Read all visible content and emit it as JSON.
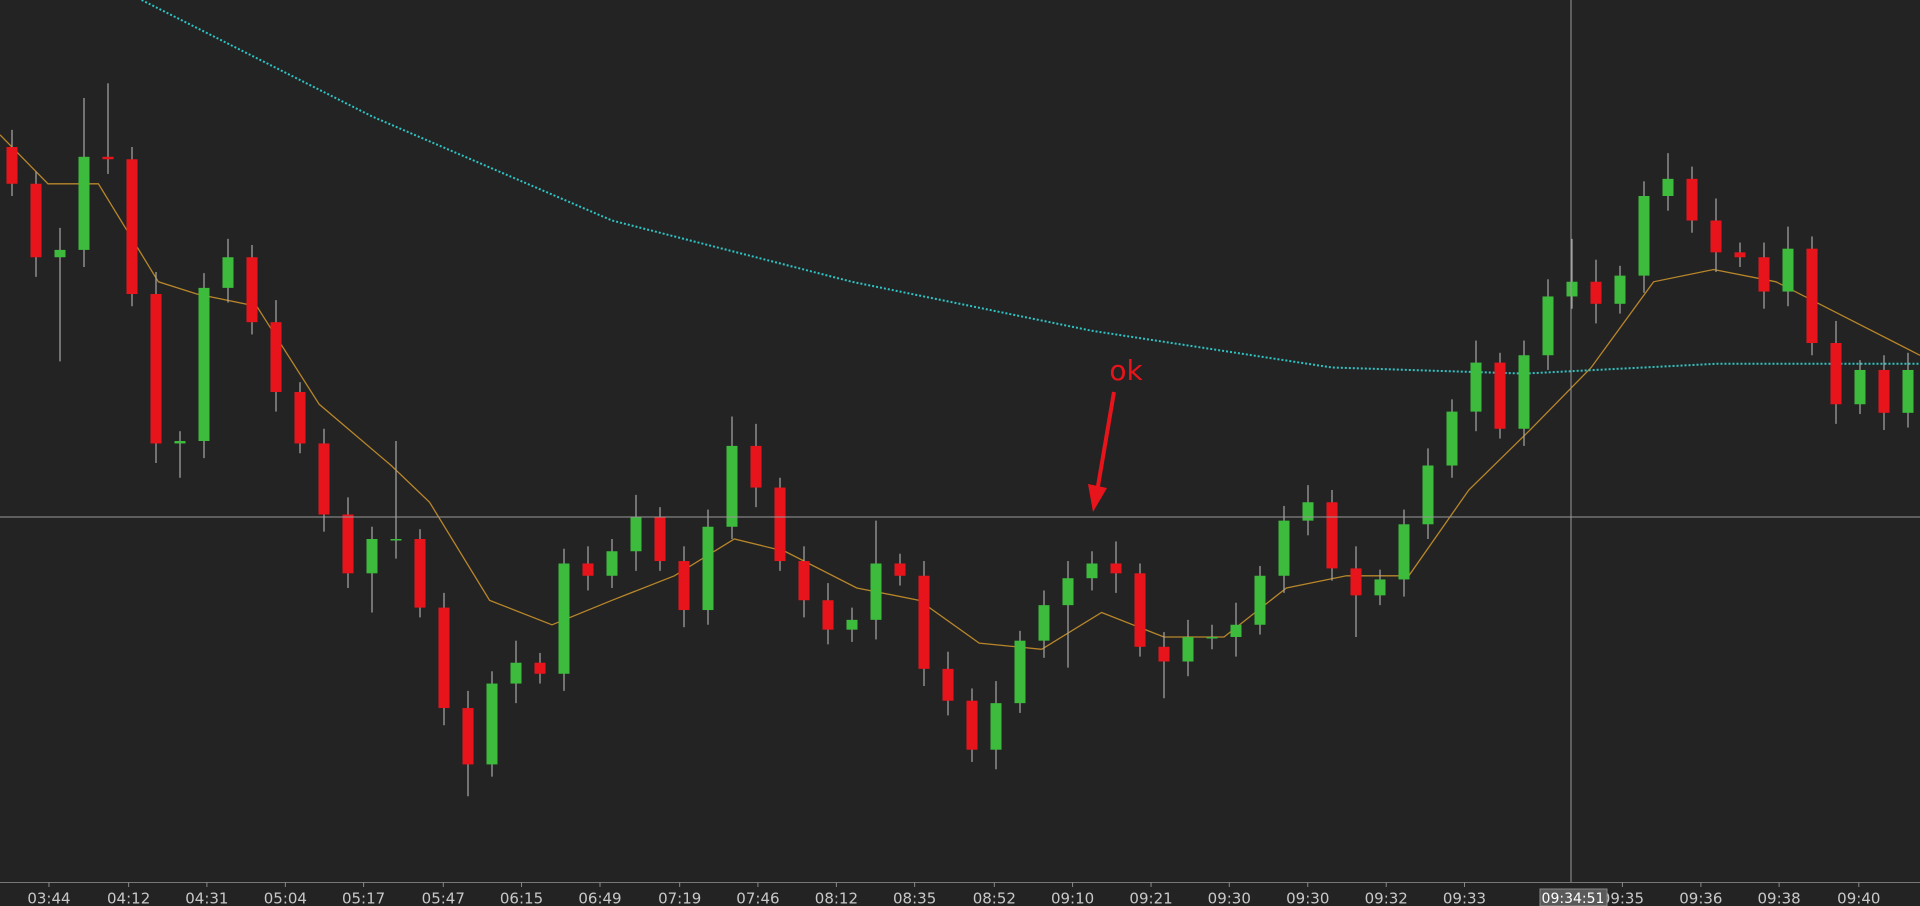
{
  "chart_data": {
    "type": "candlestick",
    "open": [
      620,
      590,
      530,
      536,
      612,
      610,
      500,
      378,
      380,
      505,
      530,
      477,
      420,
      378,
      320,
      272,
      300,
      300,
      244,
      162,
      116,
      182,
      199,
      190,
      280,
      270,
      290,
      318,
      282,
      242,
      310,
      376,
      342,
      282,
      250,
      226,
      234,
      280,
      270,
      194,
      168,
      128,
      166,
      217,
      246,
      268,
      280,
      272,
      212,
      200,
      220,
      220,
      230,
      270,
      315,
      330,
      276,
      254,
      267,
      312,
      360,
      404,
      444,
      390,
      450,
      498,
      510,
      492,
      515,
      580,
      594,
      560,
      534,
      530,
      502,
      537,
      460,
      410,
      438,
      403
    ],
    "high": [
      634,
      600,
      554,
      660,
      672,
      620,
      518,
      388,
      517,
      545,
      540,
      495,
      428,
      390,
      334,
      310,
      380,
      308,
      256,
      176,
      192,
      217,
      207,
      292,
      294,
      300,
      336,
      326,
      294,
      324,
      400,
      394,
      350,
      294,
      264,
      244,
      315,
      288,
      282,
      208,
      178,
      184,
      225,
      258,
      282,
      290,
      298,
      280,
      224,
      234,
      230,
      248,
      278,
      327,
      344,
      340,
      294,
      275,
      324,
      374,
      414,
      462,
      452,
      462,
      512,
      545,
      528,
      523,
      592,
      615,
      604,
      578,
      542,
      542,
      555,
      547,
      478,
      446,
      450,
      452
    ],
    "low": [
      580,
      514,
      445,
      522,
      598,
      490,
      362,
      350,
      366,
      493,
      467,
      404,
      370,
      306,
      260,
      240,
      284,
      236,
      148,
      90,
      106,
      166,
      182,
      176,
      258,
      260,
      274,
      274,
      228,
      230,
      300,
      326,
      274,
      236,
      214,
      216,
      218,
      262,
      180,
      156,
      118,
      112,
      158,
      203,
      195,
      258,
      256,
      204,
      170,
      188,
      210,
      204,
      222,
      256,
      303,
      266,
      220,
      246,
      253,
      300,
      350,
      388,
      382,
      376,
      438,
      488,
      476,
      484,
      501,
      568,
      550,
      518,
      522,
      488,
      490,
      450,
      394,
      402,
      389,
      391
    ],
    "close": [
      590,
      530,
      536,
      612,
      610,
      500,
      378,
      380,
      505,
      530,
      477,
      420,
      378,
      320,
      272,
      300,
      300,
      244,
      162,
      116,
      182,
      199,
      190,
      280,
      270,
      290,
      318,
      282,
      242,
      310,
      376,
      342,
      282,
      250,
      226,
      234,
      280,
      270,
      194,
      168,
      128,
      166,
      217,
      246,
      268,
      280,
      272,
      212,
      200,
      220,
      220,
      230,
      270,
      315,
      330,
      276,
      254,
      267,
      312,
      360,
      404,
      444,
      390,
      450,
      498,
      510,
      492,
      515,
      580,
      594,
      560,
      534,
      530,
      502,
      537,
      460,
      410,
      438,
      403,
      438
    ],
    "up_color": "#3dbb3d",
    "down_color": "#e8141b",
    "lines": [
      {
        "color": "#b8862a",
        "dotted": false,
        "x": [
          -0.5,
          1.5,
          3.6,
          6.1,
          7.7,
          10.2,
          12.8,
          15.8,
          17.4,
          19.9,
          22.5,
          25,
          27.6,
          30.1,
          32.2,
          35.2,
          37.8,
          40.3,
          42.9,
          45.4,
          48,
          50.5,
          53.1,
          55.6,
          58.2,
          60.7,
          63.3,
          65.8,
          68.4,
          70.9,
          73.5,
          76,
          79.5
        ],
        "values": [
          630,
          590,
          590,
          510,
          500,
          490,
          410,
          360,
          330,
          250,
          230,
          250,
          270,
          300,
          290,
          260,
          250,
          215,
          210,
          240,
          220,
          220,
          260,
          270,
          270,
          340,
          390,
          440,
          510,
          520,
          510,
          485,
          450
        ]
      },
      {
        "color": "#2ec4c4",
        "dotted": true,
        "x": [
          5.4,
          15,
          25,
          35,
          45,
          55,
          63,
          71,
          79.5
        ],
        "values": [
          740,
          645,
          560,
          510,
          470,
          440,
          435,
          443,
          443
        ]
      }
    ],
    "xlim": [
      -0.5,
      79.5
    ],
    "ylim": [
      20,
      740
    ],
    "xticks": [
      {
        "value": 1.54,
        "label": "03:44"
      },
      {
        "value": 4.86,
        "label": "04:12"
      },
      {
        "value": 8.12,
        "label": "04:31"
      },
      {
        "value": 11.39,
        "label": "05:04"
      },
      {
        "value": 14.65,
        "label": "05:17"
      },
      {
        "value": 17.97,
        "label": "05:47"
      },
      {
        "value": 21.23,
        "label": "06:15"
      },
      {
        "value": 24.5,
        "label": "06:49"
      },
      {
        "value": 27.82,
        "label": "07:19"
      },
      {
        "value": 31.08,
        "label": "07:46"
      },
      {
        "value": 34.35,
        "label": "08:12"
      },
      {
        "value": 37.61,
        "label": "08:35"
      },
      {
        "value": 40.93,
        "label": "08:52"
      },
      {
        "value": 44.19,
        "label": "09:10"
      },
      {
        "value": 47.46,
        "label": "09:21"
      },
      {
        "value": 50.72,
        "label": "09:30"
      },
      {
        "value": 53.99,
        "label": "09:30"
      },
      {
        "value": 57.26,
        "label": "09:32"
      },
      {
        "value": 60.52,
        "label": "09:33"
      },
      {
        "value": 67.1,
        "label": "09:35"
      },
      {
        "value": 70.37,
        "label": "09:36"
      },
      {
        "value": 73.63,
        "label": "09:38"
      },
      {
        "value": 76.95,
        "label": "09:40"
      }
    ],
    "annotation": "ok",
    "crosshair_label": "09:34:51"
  }
}
